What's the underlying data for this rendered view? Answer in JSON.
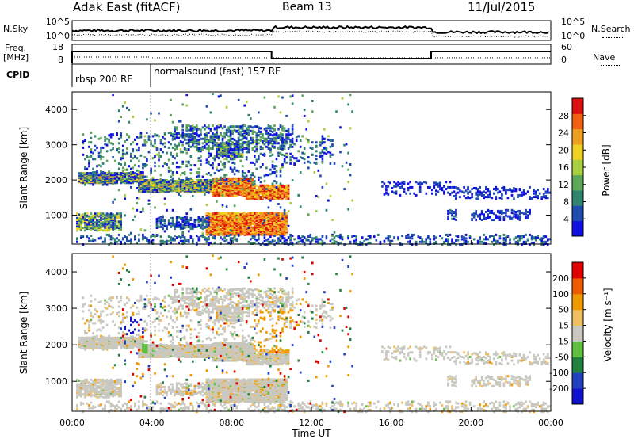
{
  "header": {
    "station": "Adak East (fitACF)",
    "beam": "Beam 13",
    "date": "11/Jul/2015"
  },
  "noise_panel": {
    "left_label": "N.Sky",
    "right_label": "N.Search",
    "left_ticks": [
      "10^5",
      "10^0"
    ],
    "right_ticks": [
      "10^5",
      "10^0"
    ]
  },
  "freq_panel": {
    "left_label_line1": "Freq.",
    "left_label_line2": "[MHz]",
    "right_label": "Nave",
    "left_ticks": [
      "18",
      "8"
    ],
    "right_ticks": [
      "60",
      "0"
    ]
  },
  "cpid": {
    "label": "CPID",
    "segments": [
      "rbsp 200 RF",
      "normalsound (fast) 157 RF"
    ]
  },
  "colors": {
    "power": [
      "#1010e0",
      "#1e4bb0",
      "#2f8470",
      "#5ea85a",
      "#a8d040",
      "#f0d020",
      "#f0a020",
      "#f06010",
      "#d81010"
    ],
    "velocity": [
      "#e00000",
      "#f05a00",
      "#f09a00",
      "#f0c060",
      "#c8c8c0",
      "#60c040",
      "#208040",
      "#2040c0",
      "#1010d0"
    ]
  },
  "chart_data": [
    {
      "type": "heatmap",
      "name": "power",
      "xlabel": "Time UT",
      "ylabel": "Slant Range [km]",
      "x_range_hours": [
        0,
        24
      ],
      "y_range_km": [
        180,
        4500
      ],
      "y_ticks": [
        "1000",
        "2000",
        "3000",
        "4000"
      ],
      "colorbar_label": "Power [dB]",
      "colorbar_ticks": [
        "4",
        "8",
        "12",
        "16",
        "20",
        "24",
        "28"
      ],
      "colorbar_range": [
        0,
        30
      ]
    },
    {
      "type": "heatmap",
      "name": "velocity",
      "xlabel": "Time UT",
      "ylabel": "Slant Range [km]",
      "x_range_hours": [
        0,
        24
      ],
      "y_range_km": [
        180,
        4500
      ],
      "y_ticks": [
        "1000",
        "2000",
        "3000",
        "4000"
      ],
      "colorbar_label": "Velocity [m s⁻¹]",
      "colorbar_ticks": [
        "200",
        "100",
        "50",
        "15",
        "-15",
        "-50",
        "-100",
        "-200"
      ]
    }
  ],
  "x_axis": {
    "ticks": [
      "00:00",
      "04:00",
      "08:00",
      "12:00",
      "16:00",
      "20:00",
      "00:00"
    ],
    "label": "Time UT"
  }
}
